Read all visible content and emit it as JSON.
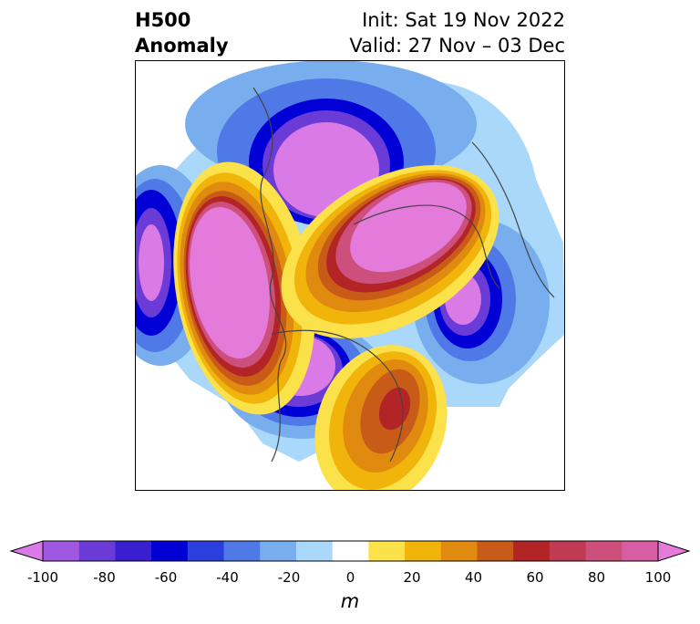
{
  "title": {
    "left_line1": "H500",
    "left_line2": "Anomaly",
    "right_line1": "Init: Sat 19 Nov 2022",
    "right_line2": "Valid: 27 Nov – 03 Dec"
  },
  "colorbar": {
    "unit": "m",
    "ticks": [
      "-100",
      "-80",
      "-60",
      "-40",
      "-20",
      "0",
      "20",
      "40",
      "60",
      "80",
      "100"
    ],
    "tick_values": [
      -100,
      -80,
      -60,
      -40,
      -20,
      0,
      20,
      40,
      60,
      80,
      100
    ],
    "range": [
      -100,
      100
    ],
    "colors": [
      "#d97ae6",
      "#a058e0",
      "#6a3bd6",
      "#3a1fd0",
      "#0000d6",
      "#2a3fdc",
      "#4f79e6",
      "#79aeee",
      "#a9d8fb",
      "#ffffff",
      "#fbe14a",
      "#f1b40b",
      "#e08a0f",
      "#c75b17",
      "#b32426",
      "#c03a54",
      "#cd4f7b",
      "#d85ea3",
      "#e47ad9"
    ]
  }
}
